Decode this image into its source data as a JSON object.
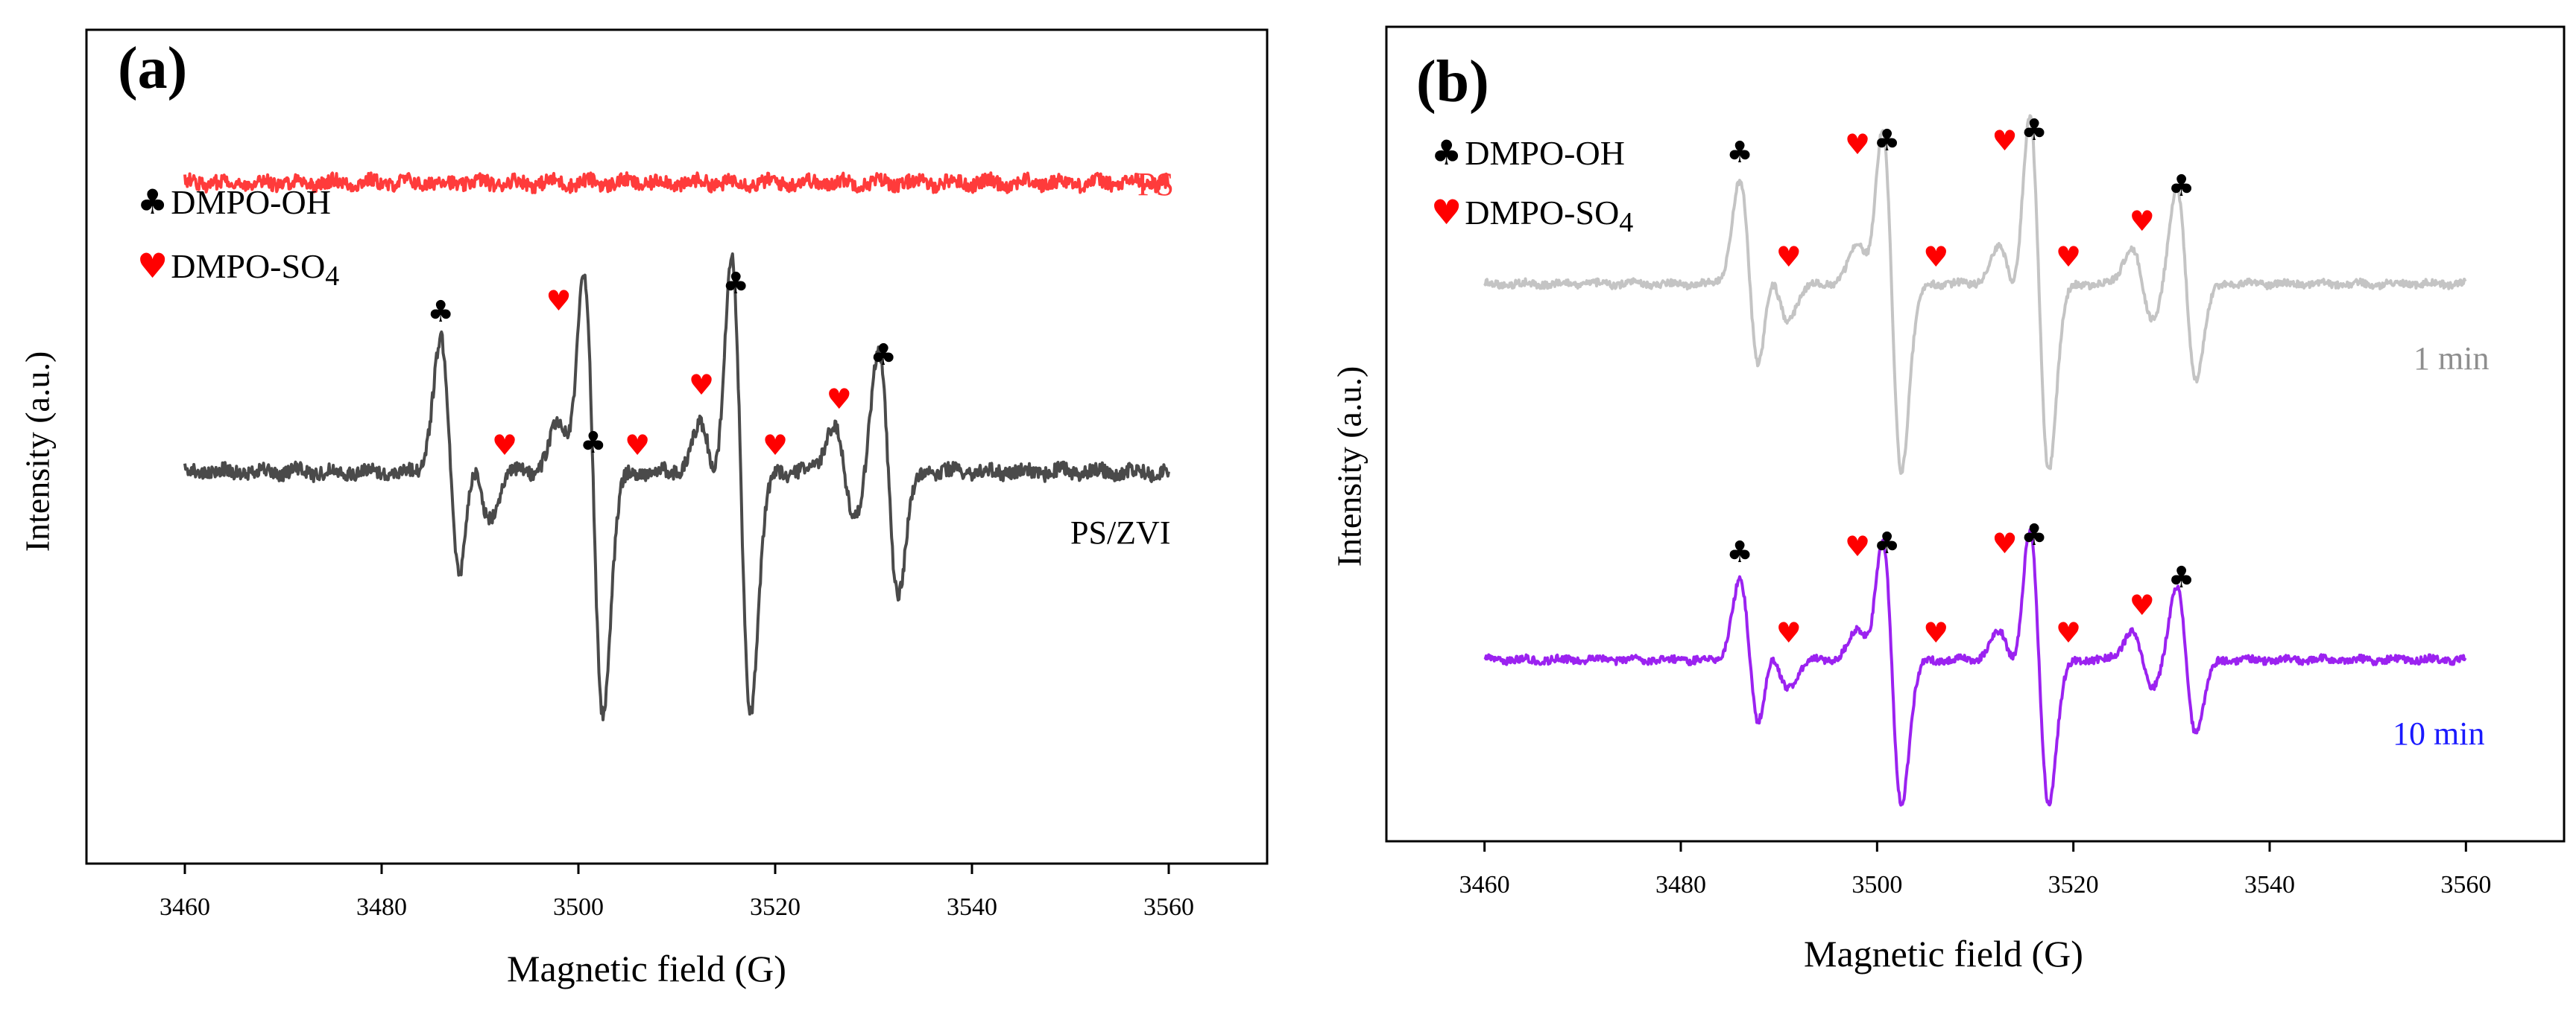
{
  "legend": {
    "oh": "DMPO-OH",
    "so4_prefix": "DMPO-SO",
    "so4_sub": "4"
  },
  "colors": {
    "ps": "#ff3b3b",
    "pszvi": "#4a4a4a",
    "min1": "#c4c4c4",
    "min10": "#9b22f0",
    "oh_marker": "#000000",
    "so4_marker": "#ff0000",
    "label_1min": "#8e8e8e",
    "label_10min": "#1a1aff"
  },
  "chart_data": [
    {
      "type": "line",
      "panel_label": "(a)",
      "xlabel": "Magnetic field (G)",
      "ylabel": "Intensity (a.u.)",
      "xlim": [
        3450,
        3570
      ],
      "xticks": [
        3460,
        3480,
        3500,
        3520,
        3540,
        3560
      ],
      "ylim": [
        -12,
        14
      ],
      "series": [
        {
          "name": "PS",
          "key": "ps",
          "color_key": "ps",
          "offset": 10,
          "noise": 0.35,
          "scale": 0,
          "x_range": [
            3460,
            3560
          ]
        },
        {
          "name": "PS/ZVI",
          "key": "pszvi",
          "color_key": "pszvi",
          "offset": 0,
          "noise": 0.35,
          "scale": 1.0,
          "x_range": [
            3460,
            3560
          ]
        }
      ],
      "oh_peaks_G": [
        3487,
        3501.5,
        3516.5,
        3531.5
      ],
      "oh_amplitudes": [
        4.5,
        8.2,
        8.2,
        4.2
      ],
      "so4_peaks_G": [
        3489.8,
        3499,
        3513.5,
        3527
      ],
      "so4_amplitudes": [
        1.6,
        1.6,
        1.6,
        1.6
      ],
      "oh_markers_G": [
        3486,
        3501.5,
        3516,
        3531
      ],
      "so4_markers_G": [
        3492.5,
        3498,
        3506,
        3512.5,
        3520,
        3526.5
      ]
    },
    {
      "type": "line",
      "panel_label": "(b)",
      "xlabel": "Magnetic field (G)",
      "ylabel": "Intensity (a.u.)",
      "xlim": [
        3450,
        3570
      ],
      "xticks": [
        3460,
        3480,
        3500,
        3520,
        3540,
        3560
      ],
      "ylim": [
        -12,
        14
      ],
      "series": [
        {
          "name": "1 min",
          "key": "min1",
          "color_key": "min1",
          "label_color_key": "label_1min",
          "offset": 6.5,
          "noise": 0.18,
          "scale": 0.78,
          "x_range": [
            3460,
            3560
          ]
        },
        {
          "name": "10 min",
          "key": "min10",
          "color_key": "min10",
          "label_color_key": "label_10min",
          "offset": -6.5,
          "noise": 0.18,
          "scale": 0.6,
          "x_range": [
            3460,
            3560
          ]
        }
      ],
      "oh_peaks_G": [
        3487,
        3501.5,
        3516.5,
        3531.5
      ],
      "oh_amplitudes": [
        4.5,
        8.2,
        8.2,
        4.2
      ],
      "so4_peaks_G": [
        3489.8,
        3499,
        3513.5,
        3527
      ],
      "so4_amplitudes": [
        1.6,
        1.6,
        1.6,
        1.6
      ],
      "oh_markers_G": [
        3486,
        3501,
        3516,
        3531
      ],
      "so4_markers_G": [
        3491,
        3498,
        3506,
        3513,
        3519.5,
        3527
      ]
    }
  ]
}
